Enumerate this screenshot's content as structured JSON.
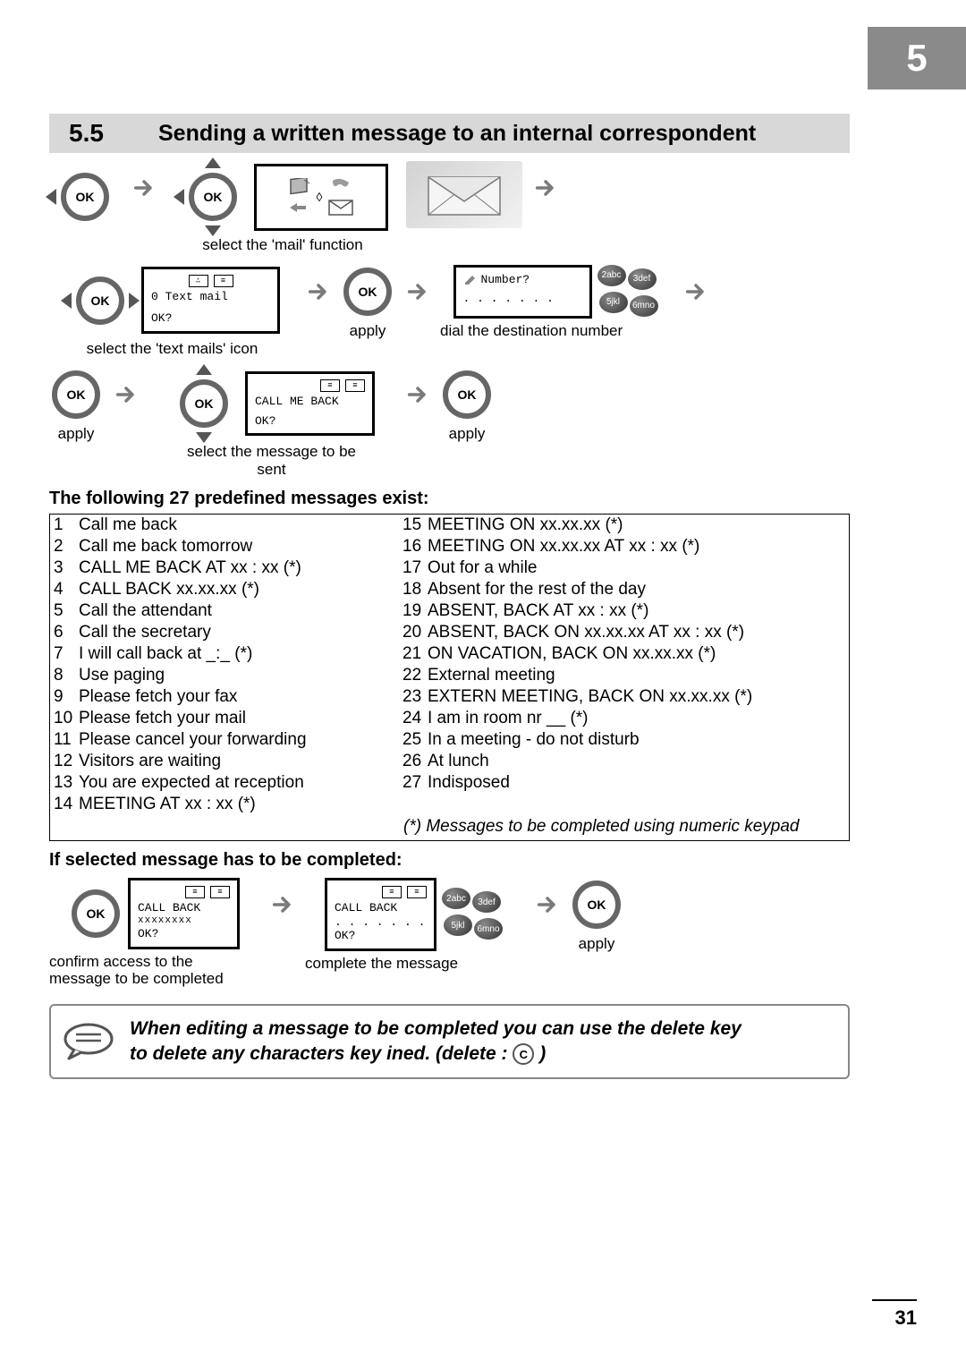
{
  "chapter_tab": "5",
  "section": {
    "number": "5.5",
    "title": "Sending a written message to an internal correspondent"
  },
  "ok_label": "OK",
  "flow": {
    "row1_mail_label": "select the 'mail' function",
    "mail_screen_updown": "◊",
    "row2_textmails_label": "select the 'text mails' icon",
    "row2_apply_label": "apply",
    "row2_dial_label": "dial the destination number",
    "textmail_screen_line1": "0 Text mail",
    "ok_prompt": "OK?",
    "number_screen_line1": "Number?",
    "number_screen_line2": ". . . . . . .",
    "keypad": [
      "2abc",
      "3def",
      "5jkl",
      "6mno"
    ],
    "row3_apply1_label": "apply",
    "row3_select_label": "select the message to be sent",
    "row3_apply2_label": "apply",
    "callmeback_line1": "CALL ME BACK"
  },
  "messages_heading": "The following 27 predefined messages exist:",
  "messages_left": [
    {
      "n": "1",
      "t": "Call me back"
    },
    {
      "n": "2",
      "t": "Call me back tomorrow"
    },
    {
      "n": "3",
      "t": "CALL ME BACK AT xx : xx (*)"
    },
    {
      "n": "4",
      "t": "CALL BACK xx.xx.xx (*)"
    },
    {
      "n": "5",
      "t": "Call the attendant"
    },
    {
      "n": "6",
      "t": "Call the secretary"
    },
    {
      "n": "7",
      "t": "I will call back at _:_ (*)"
    },
    {
      "n": "8",
      "t": "Use paging"
    },
    {
      "n": "9",
      "t": "Please fetch your fax"
    },
    {
      "n": "10",
      "t": "Please fetch your mail"
    },
    {
      "n": "11",
      "t": "Please cancel your forwarding"
    },
    {
      "n": "12",
      "t": "Visitors are waiting"
    },
    {
      "n": "13",
      "t": "You are expected at reception"
    },
    {
      "n": "14",
      "t": "MEETING AT xx : xx (*)"
    }
  ],
  "messages_right": [
    {
      "n": "15",
      "t": "MEETING ON xx.xx.xx (*)"
    },
    {
      "n": "16",
      "t": "MEETING ON xx.xx.xx AT xx : xx (*)"
    },
    {
      "n": "17",
      "t": "Out for a while"
    },
    {
      "n": "18",
      "t": "Absent for the rest of the day"
    },
    {
      "n": "19",
      "t": "ABSENT, BACK AT xx : xx (*)"
    },
    {
      "n": "20",
      "t": "ABSENT, BACK ON xx.xx.xx AT xx : xx (*)"
    },
    {
      "n": "21",
      "t": "ON VACATION, BACK ON xx.xx.xx (*)"
    },
    {
      "n": "22",
      "t": "External meeting"
    },
    {
      "n": "23",
      "t": "EXTERN MEETING, BACK ON xx.xx.xx (*)"
    },
    {
      "n": "24",
      "t": "I am in room nr __ (*)"
    },
    {
      "n": "25",
      "t": "In a meeting - do not disturb"
    },
    {
      "n": "26",
      "t": "At lunch"
    },
    {
      "n": "27",
      "t": "Indisposed"
    }
  ],
  "messages_note": "(*) Messages to be completed using numeric keypad",
  "completed_heading": "If selected message has to be completed:",
  "completed_flow": {
    "confirm_label": "confirm access to the message to be completed",
    "complete_label": "complete the message",
    "apply_label": "apply",
    "screen_callback": "CALL BACK",
    "screen_placeholder1": "xxxxxxxx",
    "screen_placeholder2": ". . . . . . ."
  },
  "footnote_line1": "When editing a message to be completed you can use the delete key",
  "footnote_line2a": "to delete any characters key ined. (delete : ",
  "footnote_line2b": " )",
  "c_key": "C",
  "page_number": "31"
}
